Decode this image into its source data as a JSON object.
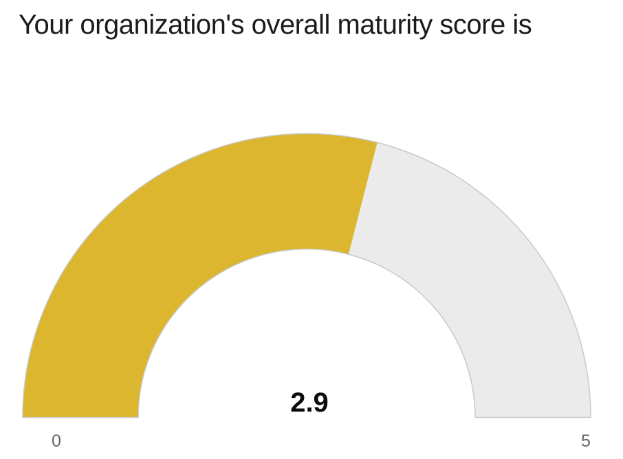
{
  "header": {
    "title": "Your organization's overall maturity score is"
  },
  "chart_data": {
    "type": "gauge",
    "title": "Your organization's overall maturity score is",
    "value": 2.9,
    "min": 0,
    "max": 5,
    "value_label": "2.9",
    "min_label": "0",
    "max_label": "5",
    "start_angle_deg": 180,
    "sweep_deg": 180,
    "legend": false,
    "colors": {
      "value_arc": "#DBB62E",
      "remainder_arc": "#EBEBEB",
      "arc_outline": "#C9C9C9",
      "callout_text": "#0b0b0b",
      "axis_label_text": "#666666",
      "title_text": "#1b1b1b"
    }
  }
}
